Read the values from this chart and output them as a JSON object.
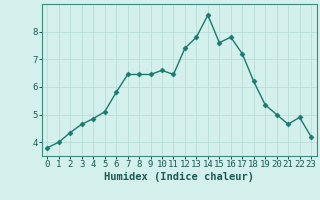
{
  "x": [
    0,
    1,
    2,
    3,
    4,
    5,
    6,
    7,
    8,
    9,
    10,
    11,
    12,
    13,
    14,
    15,
    16,
    17,
    18,
    19,
    20,
    21,
    22,
    23
  ],
  "y": [
    3.8,
    4.0,
    4.35,
    4.65,
    4.85,
    5.1,
    5.8,
    6.45,
    6.45,
    6.45,
    6.6,
    6.45,
    7.4,
    7.8,
    8.6,
    7.6,
    7.8,
    7.2,
    6.2,
    5.35,
    5.0,
    4.65,
    4.9,
    4.2
  ],
  "line_color": "#1a7a6e",
  "marker": "D",
  "marker_size": 2.5,
  "bg_color": "#d4f0ec",
  "grid_color": "#b8ddd8",
  "xlabel": "Humidex (Indice chaleur)",
  "xlabel_fontsize": 7.5,
  "tick_fontsize": 6.5,
  "ylim": [
    3.5,
    9.0
  ],
  "xlim": [
    -0.5,
    23.5
  ],
  "yticks": [
    4,
    5,
    6,
    7,
    8
  ],
  "xticks": [
    0,
    1,
    2,
    3,
    4,
    5,
    6,
    7,
    8,
    9,
    10,
    11,
    12,
    13,
    14,
    15,
    16,
    17,
    18,
    19,
    20,
    21,
    22,
    23
  ]
}
